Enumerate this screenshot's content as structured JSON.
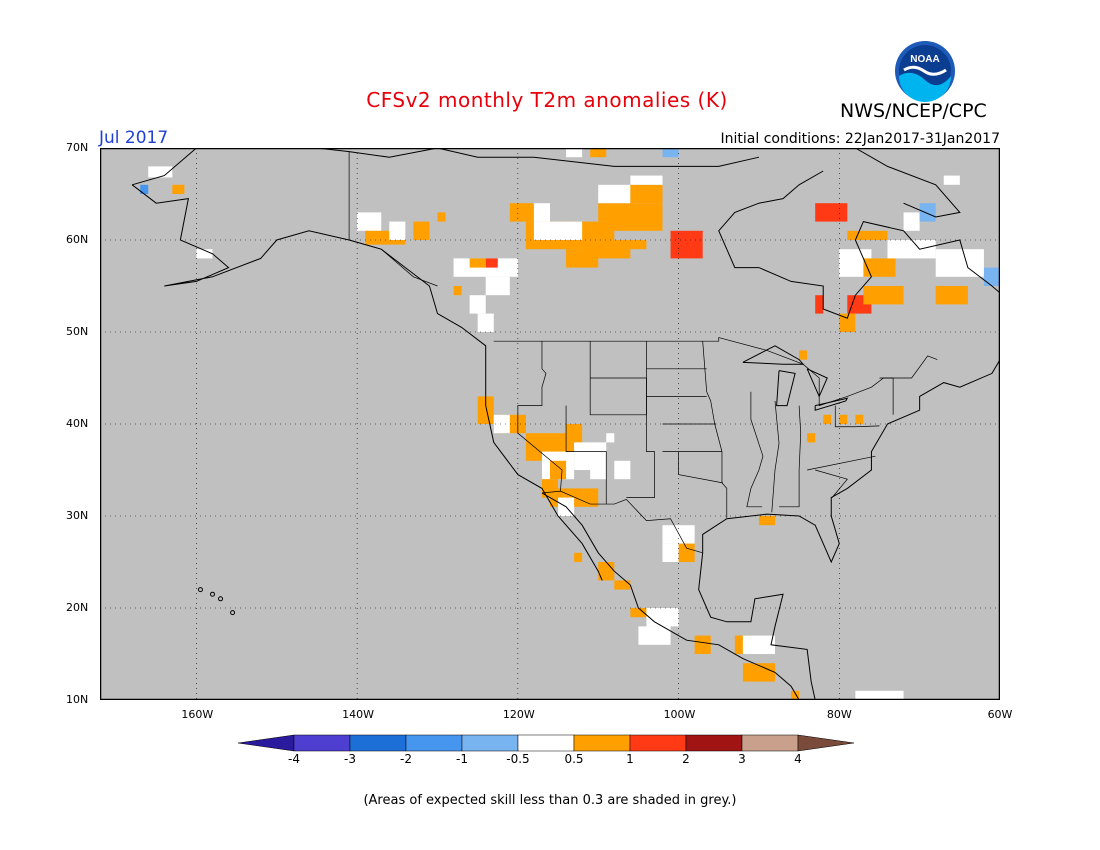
{
  "title": "CFSv2 monthly T2m anomalies (K)",
  "agency": "NWS/NCEP/CPC",
  "logo_text": "NOAA",
  "valid_month": "Jul 2017",
  "initial_conditions": "Initial conditions: 22Jan2017-31Jan2017",
  "map": {
    "lon_range": [
      -172,
      -60
    ],
    "lat_range": [
      10,
      70
    ],
    "lat_labels": [
      {
        "lat": 70,
        "label": "70N"
      },
      {
        "lat": 60,
        "label": "60N"
      },
      {
        "lat": 50,
        "label": "50N"
      },
      {
        "lat": 40,
        "label": "40N"
      },
      {
        "lat": 30,
        "label": "30N"
      },
      {
        "lat": 20,
        "label": "20N"
      },
      {
        "lat": 10,
        "label": "10N"
      }
    ],
    "lon_labels": [
      {
        "lon": -160,
        "label": "160W"
      },
      {
        "lon": -140,
        "label": "140W"
      },
      {
        "lon": -120,
        "label": "120W"
      },
      {
        "lon": -100,
        "label": "100W"
      },
      {
        "lon": -80,
        "label": "80W"
      },
      {
        "lon": -60,
        "label": "60W"
      }
    ],
    "grid": true,
    "background": "#c0c0c0",
    "colors": {
      "grey": "#c0c0c0",
      "white": "#ffffff",
      "orange": "#ffa000",
      "red": "#ff3a14",
      "lightblue": "#78b4f0",
      "blue": "#4696f0"
    }
  },
  "colorbar": {
    "labels": [
      "-4",
      "-3",
      "-2",
      "-1",
      "-0.5",
      "0.5",
      "1",
      "2",
      "3",
      "4"
    ],
    "colors": [
      "#2a1a9e",
      "#4f3fd1",
      "#1d6fd8",
      "#4696f0",
      "#78b4f0",
      "#ffffff",
      "#ffa000",
      "#ff3a14",
      "#a01414",
      "#c8a08c",
      "#7a4a3a"
    ]
  },
  "footnote": "(Areas of expected skill less than 0.3 are shaded in grey.)"
}
